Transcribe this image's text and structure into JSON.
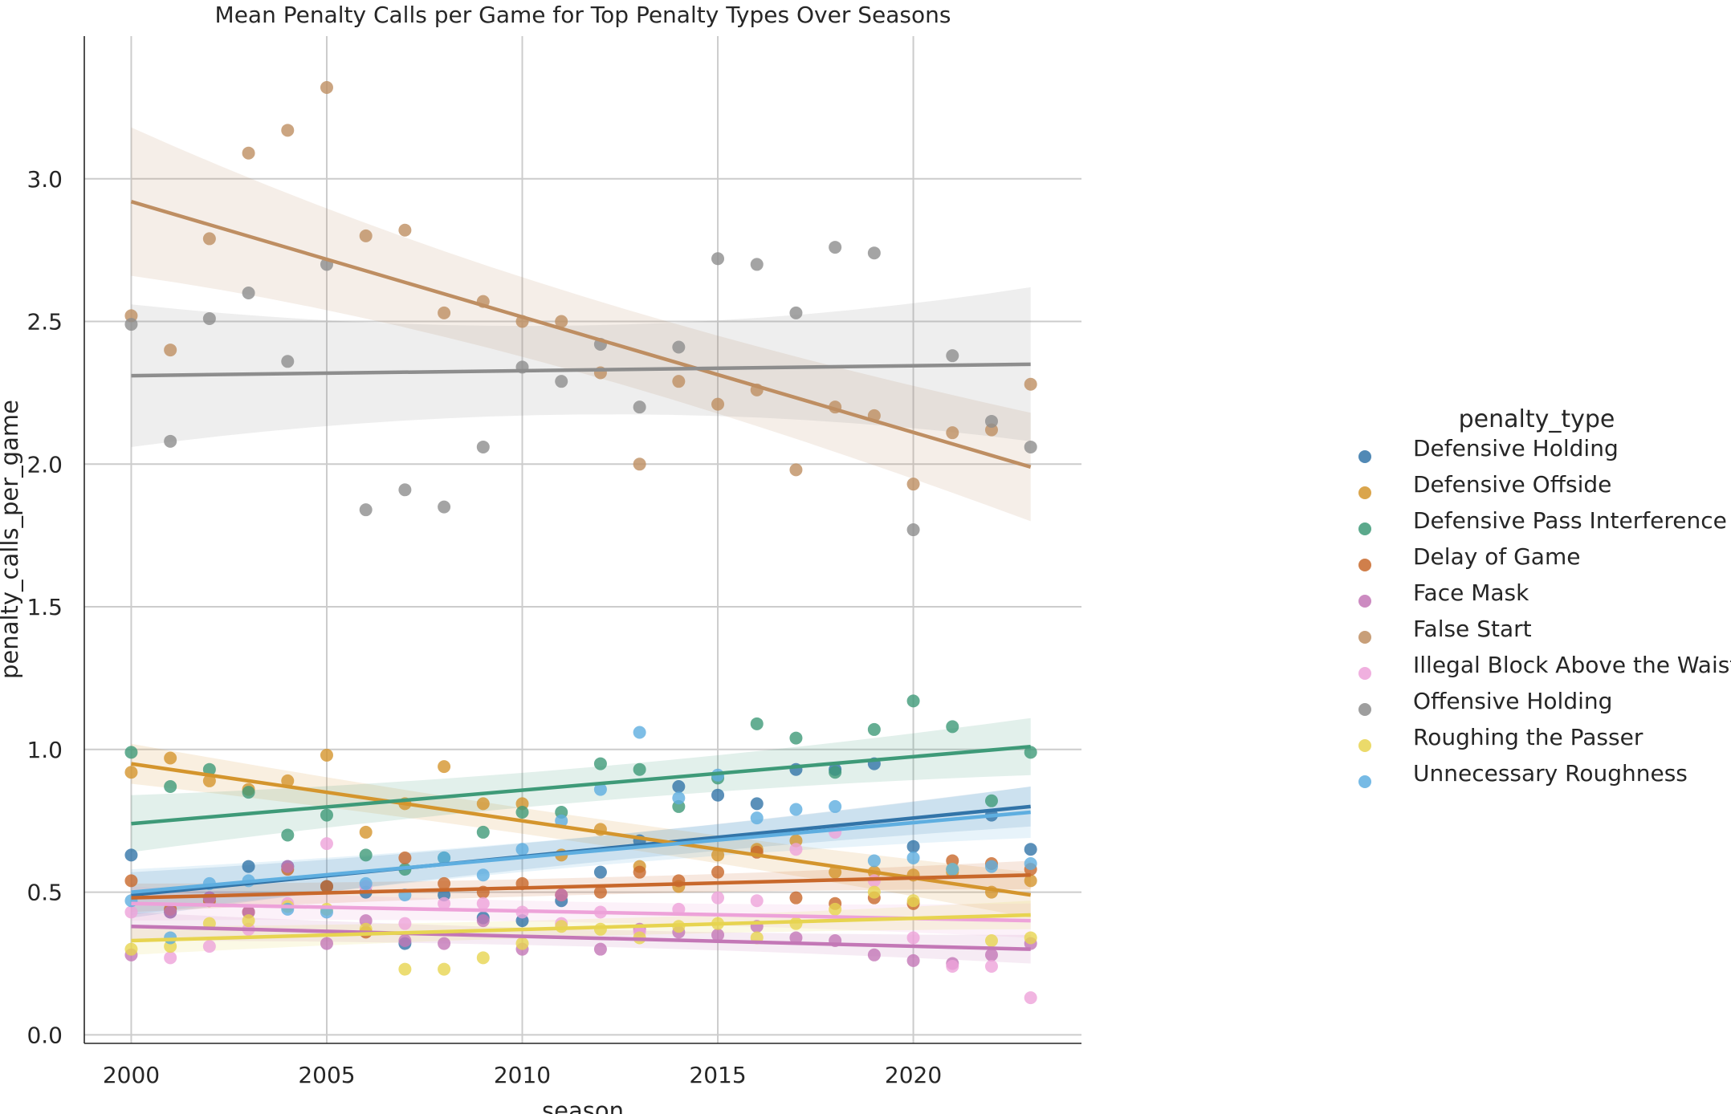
{
  "chart_data": {
    "type": "scatter",
    "title": "Mean Penalty Calls per Game for Top Penalty Types Over Seasons",
    "xlabel": "season",
    "ylabel": "penalty_calls_per_game",
    "xlim": [
      1998.8,
      2024.3
    ],
    "ylim": [
      -0.03,
      3.5
    ],
    "xticks": [
      2000,
      2005,
      2010,
      2015,
      2020
    ],
    "yticks": [
      0.0,
      0.5,
      1.0,
      1.5,
      2.0,
      2.5,
      3.0
    ],
    "grid": true,
    "legend_title": "penalty_type",
    "legend_position": "right",
    "x": [
      2000,
      2001,
      2002,
      2003,
      2004,
      2005,
      2006,
      2007,
      2008,
      2009,
      2010,
      2011,
      2012,
      2013,
      2014,
      2015,
      2016,
      2017,
      2018,
      2019,
      2020,
      2021,
      2022,
      2023
    ],
    "series": [
      {
        "name": "Defensive Holding",
        "color": "#3274a8",
        "values": [
          0.63,
          0.43,
          0.48,
          0.59,
          0.59,
          0.52,
          0.5,
          0.32,
          0.49,
          0.41,
          0.4,
          0.47,
          0.57,
          0.68,
          0.87,
          0.84,
          0.81,
          0.93,
          0.93,
          0.95,
          0.66,
          0.58,
          0.77,
          0.65
        ],
        "fit": [
          0.49,
          0.8
        ],
        "band": [
          0.08,
          0.07
        ]
      },
      {
        "name": "Defensive Offside",
        "color": "#d4952d",
        "values": [
          0.92,
          0.97,
          0.89,
          0.86,
          0.89,
          0.98,
          0.71,
          0.81,
          0.94,
          0.81,
          0.81,
          0.63,
          0.72,
          0.59,
          0.52,
          0.63,
          0.65,
          0.68,
          0.57,
          0.57,
          0.56,
          0.57,
          0.5,
          0.54
        ],
        "fit": [
          0.95,
          0.49
        ],
        "band": [
          0.07,
          0.08
        ]
      },
      {
        "name": "Defensive Pass Interference",
        "color": "#3e9a78",
        "values": [
          0.99,
          0.87,
          0.93,
          0.85,
          0.7,
          0.77,
          0.63,
          0.58,
          0.62,
          0.71,
          0.78,
          0.78,
          0.95,
          0.93,
          0.8,
          0.9,
          1.09,
          1.04,
          0.92,
          1.07,
          1.17,
          1.08,
          0.82,
          0.99
        ],
        "fit": [
          0.74,
          1.01
        ],
        "band": [
          0.1,
          0.1
        ]
      },
      {
        "name": "Delay of Game",
        "color": "#c8682b",
        "values": [
          0.54,
          0.44,
          0.47,
          0.43,
          0.58,
          0.52,
          0.36,
          0.62,
          0.53,
          0.5,
          0.53,
          0.49,
          0.5,
          0.57,
          0.54,
          0.57,
          0.64,
          0.48,
          0.46,
          0.48,
          0.46,
          0.61,
          0.6,
          0.58
        ],
        "fit": [
          0.48,
          0.56
        ],
        "band": [
          0.05,
          0.05
        ]
      },
      {
        "name": "Face Mask",
        "color": "#c377b6",
        "values": [
          0.28,
          0.43,
          0.48,
          0.43,
          0.59,
          0.32,
          0.4,
          0.33,
          0.32,
          0.4,
          0.3,
          0.49,
          0.3,
          0.37,
          0.36,
          0.35,
          0.38,
          0.34,
          0.33,
          0.28,
          0.26,
          0.25,
          0.28,
          0.32
        ],
        "fit": [
          0.38,
          0.3
        ],
        "band": [
          0.05,
          0.05
        ]
      },
      {
        "name": "False Start",
        "color": "#be8e62",
        "values": [
          2.52,
          2.4,
          2.79,
          3.09,
          3.17,
          3.32,
          2.8,
          2.82,
          2.53,
          2.57,
          2.5,
          2.5,
          2.32,
          2.0,
          2.29,
          2.21,
          2.26,
          1.98,
          2.2,
          2.17,
          1.93,
          2.11,
          2.12,
          2.28
        ],
        "fit": [
          2.92,
          1.99
        ],
        "band": [
          0.26,
          0.19
        ]
      },
      {
        "name": "Illegal Block Above the Waist",
        "color": "#eda2d9",
        "values": [
          0.43,
          0.27,
          0.31,
          0.37,
          0.46,
          0.67,
          0.52,
          0.39,
          0.46,
          0.46,
          0.43,
          0.39,
          0.43,
          0.36,
          0.44,
          0.48,
          0.47,
          0.65,
          0.71,
          0.54,
          0.34,
          0.24,
          0.24,
          0.13
        ],
        "fit": [
          0.46,
          0.4
        ],
        "band": [
          0.06,
          0.06
        ]
      },
      {
        "name": "Offensive Holding",
        "color": "#8d8d8d",
        "values": [
          2.49,
          2.08,
          2.51,
          2.6,
          2.36,
          2.7,
          1.84,
          1.91,
          1.85,
          2.06,
          2.34,
          2.29,
          2.42,
          2.2,
          2.41,
          2.72,
          2.7,
          2.53,
          2.76,
          2.74,
          1.77,
          2.38,
          2.15,
          2.06
        ],
        "fit": [
          2.31,
          2.35
        ],
        "band": [
          0.25,
          0.27
        ]
      },
      {
        "name": "Roughing the Passer",
        "color": "#e7d450",
        "values": [
          0.3,
          0.31,
          0.39,
          0.4,
          0.45,
          0.44,
          0.37,
          0.23,
          0.23,
          0.27,
          0.32,
          0.38,
          0.37,
          0.34,
          0.38,
          0.39,
          0.34,
          0.39,
          0.44,
          0.5,
          0.47,
          0.58,
          0.33,
          0.34
        ],
        "fit": [
          0.33,
          0.42
        ],
        "band": [
          0.05,
          0.05
        ]
      },
      {
        "name": "Unnecessary Roughness",
        "color": "#5eaee0",
        "values": [
          0.47,
          0.34,
          0.53,
          0.54,
          0.44,
          0.43,
          0.53,
          0.49,
          0.62,
          0.56,
          0.65,
          0.75,
          0.86,
          1.06,
          0.83,
          0.91,
          0.76,
          0.79,
          0.8,
          0.61,
          0.62,
          0.58,
          0.59,
          0.6
        ],
        "fit": [
          0.5,
          0.78
        ],
        "band": [
          0.08,
          0.09
        ]
      }
    ]
  }
}
